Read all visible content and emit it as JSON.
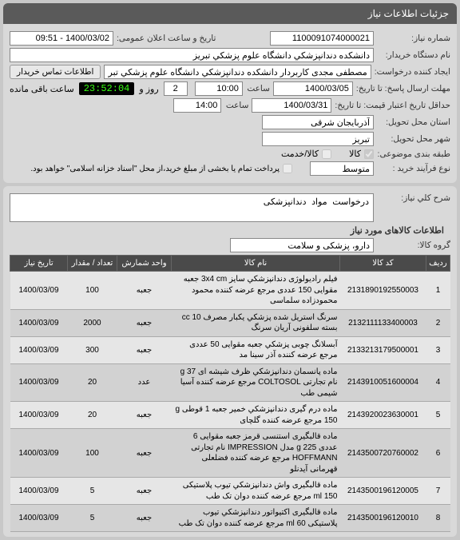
{
  "header": {
    "title": "جزئیات اطلاعات نیاز"
  },
  "fields": {
    "need_no_label": "شماره نیاز:",
    "need_no": "1100091074000021",
    "announce_label": "تاریخ و ساعت اعلان عمومی:",
    "announce_value": "1400/03/02 - 09:51",
    "buyer_label": "نام دستگاه خریدار:",
    "buyer": "دانشکده دندانپزشکي دانشگاه علوم پزشکي تبریز",
    "requester_label": "ایجاد کننده درخواست:",
    "requester": "مصطفی مجدی کاربردار دانشکده دندانپزشکي دانشگاه علوم پزشکي تبریز",
    "contact_btn": "اطلاعات تماس خریدار",
    "deadline_label": "مهلت ارسال پاسخ: تا تاریخ:",
    "deadline_date": "1400/03/05",
    "time_label_1": "ساعت",
    "deadline_time_h": "10:00",
    "days_label": "روز و",
    "days_val": "2",
    "remaining_time": "23:52:04",
    "remaining_label": "ساعت باقی مانده",
    "valid_label": "حداقل تاریخ اعتبار قیمت: تا تاریخ:",
    "valid_date": "1400/03/31",
    "valid_time": "14:00",
    "province_label": "استان محل تحویل:",
    "province": "آذربایجان شرقی",
    "city_label": "شهر محل تحویل:",
    "city": "تبریز",
    "group_type_label": "طبقه بندی موضوعی:",
    "goods_opt": "کالا",
    "service_opt": "کالا/خدمت",
    "process_label": "نوع فرآیند خرید :",
    "process_val": "متوسط",
    "partial_label": "پرداخت تمام یا بخشی از مبلغ خرید،از محل \"اسناد خزانه اسلامی\" خواهد بود."
  },
  "desc": {
    "title_label": "شرح کلي نیاز:",
    "title_value": "درخواست مواد دندانپزشکی",
    "items_label": "اطلاعات کالاهای مورد نیاز",
    "group_label": "گروه کالا:",
    "group_value": "دارو، پزشکی و سلامت"
  },
  "table": {
    "headers": {
      "idx": "ردیف",
      "code": "کد کالا",
      "name": "نام کالا",
      "unit": "واحد شمارش",
      "qty": "تعداد / مقدار",
      "date": "تاریخ نیاز"
    },
    "rows": [
      {
        "idx": "1",
        "code": "2131890192550003",
        "name": "فیلم رادیولوژی دندانپزشکي سایز 3x4 cm جعبه مقوایی 150 عددی مرجع عرضه کننده محمود محمودزاده سلماسی",
        "unit": "جعبه",
        "qty": "100",
        "date": "1400/03/09"
      },
      {
        "idx": "2",
        "code": "2132111133400003",
        "name": "سرنگ استریل شده پزشکي یکبار مصرف cc 10 بسته سلفونی آریان سرنگ",
        "unit": "جعبه",
        "qty": "2000",
        "date": "1400/03/09"
      },
      {
        "idx": "3",
        "code": "2133213179500001",
        "name": "آبسلانگ چوبی پزشکي جعبه مقوایی 50 عددی مرجع عرضه کننده آذر سینا مد",
        "unit": "جعبه",
        "qty": "300",
        "date": "1400/03/09"
      },
      {
        "idx": "4",
        "code": "2143910051600004",
        "name": "ماده پانسمان دندانپزشکي ظرف شیشه ای g 37 نام تجارتی COLTOSOL مرجع عرضه کننده آسیا شیمی طب",
        "unit": "عدد",
        "qty": "20",
        "date": "1400/03/09"
      },
      {
        "idx": "5",
        "code": "2143920023630001",
        "name": "ماده درم گیری دندانپزشکي خمیر جعبه 1 قوطی g 150 مرجع عرضه کننده گلچای",
        "unit": "جعبه",
        "qty": "20",
        "date": "1400/03/09"
      },
      {
        "idx": "6",
        "code": "2143500720760002",
        "name": "ماده قالبگیری استنسی قرمز جعبه مقوایی 6 عددی g 225 مدل IMPRESSION نام تجارتی HOFFMANN مرجع عرضه کننده فضلعلی قهرمانی آیدنلو",
        "unit": "جعبه",
        "qty": "100",
        "date": "1400/03/09"
      },
      {
        "idx": "7",
        "code": "2143500196120005",
        "name": "ماده قالبگیری واش دندانپزشکي تیوب پلاستیکی 150 ml مرجع عرضه کننده دوان تک طب",
        "unit": "جعبه",
        "qty": "5",
        "date": "1400/03/09"
      },
      {
        "idx": "8",
        "code": "2143500196120010",
        "name": "ماده قالبگیری اکتیواتور دندانپزشکي تیوب پلاستیکی 60 ml مرجع عرضه کننده دوان تک طب",
        "unit": "جعبه",
        "qty": "5",
        "date": "1400/03/09"
      }
    ]
  }
}
